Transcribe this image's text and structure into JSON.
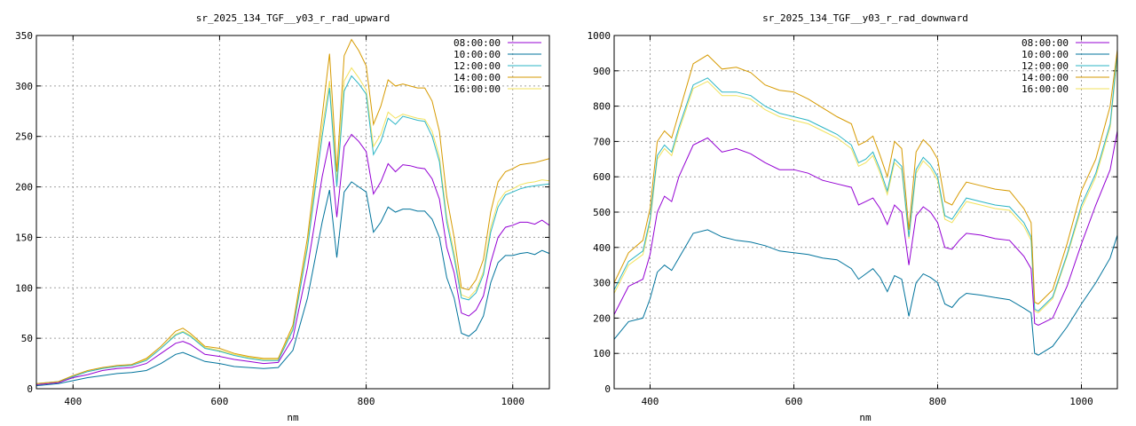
{
  "chart_data": [
    {
      "type": "line",
      "title": "sr_2025_134_TGF__y03_r_rad_upward",
      "xlabel": "nm",
      "ylabel": "",
      "xlim": [
        350,
        1050
      ],
      "ylim": [
        0,
        350
      ],
      "xticks": [
        400,
        600,
        800,
        1000
      ],
      "yticks": [
        0,
        50,
        100,
        150,
        200,
        250,
        300,
        350
      ],
      "grid": true,
      "legend": "top-right",
      "colors": [
        "#9400d3",
        "#00739c",
        "#2bb5c5",
        "#d69a00",
        "#f2e25c"
      ],
      "x": [
        350,
        380,
        400,
        420,
        440,
        460,
        480,
        500,
        520,
        540,
        550,
        560,
        580,
        600,
        620,
        640,
        660,
        680,
        700,
        720,
        740,
        750,
        760,
        770,
        780,
        790,
        800,
        810,
        820,
        830,
        840,
        850,
        860,
        870,
        880,
        890,
        900,
        910,
        920,
        930,
        940,
        950,
        960,
        970,
        980,
        990,
        1000,
        1010,
        1020,
        1030,
        1040,
        1050
      ],
      "series": [
        {
          "name": "08:00:00",
          "values": [
            4,
            6,
            11,
            14,
            18,
            20,
            21,
            25,
            35,
            45,
            47,
            44,
            34,
            32,
            29,
            27,
            25,
            26,
            50,
            120,
            210,
            245,
            170,
            240,
            252,
            245,
            235,
            193,
            205,
            223,
            215,
            222,
            221,
            219,
            218,
            208,
            188,
            140,
            115,
            75,
            72,
            78,
            92,
            125,
            150,
            160,
            162,
            165,
            165,
            163,
            167,
            162
          ]
        },
        {
          "name": "10:00:00",
          "values": [
            3,
            5,
            8,
            11,
            13,
            15,
            16,
            18,
            25,
            34,
            36,
            33,
            27,
            25,
            22,
            21,
            20,
            21,
            38,
            90,
            165,
            197,
            130,
            195,
            205,
            200,
            195,
            155,
            165,
            180,
            175,
            178,
            178,
            176,
            176,
            168,
            150,
            110,
            90,
            55,
            52,
            58,
            72,
            105,
            125,
            132,
            132,
            134,
            135,
            133,
            137,
            134
          ]
        },
        {
          "name": "12:00:00",
          "values": [
            5,
            7,
            12,
            17,
            20,
            22,
            23,
            28,
            40,
            53,
            56,
            52,
            40,
            37,
            33,
            30,
            28,
            28,
            58,
            140,
            250,
            298,
            200,
            295,
            310,
            302,
            292,
            232,
            245,
            268,
            262,
            270,
            268,
            266,
            265,
            250,
            225,
            165,
            130,
            90,
            88,
            95,
            113,
            155,
            180,
            192,
            195,
            198,
            200,
            201,
            202,
            203
          ]
        },
        {
          "name": "14:00:00",
          "values": [
            5,
            7,
            13,
            18,
            21,
            23,
            24,
            30,
            42,
            57,
            60,
            55,
            42,
            40,
            35,
            32,
            30,
            30,
            63,
            150,
            270,
            332,
            215,
            330,
            346,
            335,
            320,
            262,
            280,
            306,
            300,
            302,
            300,
            298,
            298,
            285,
            255,
            190,
            150,
            100,
            98,
            108,
            128,
            175,
            205,
            215,
            218,
            222,
            223,
            224,
            226,
            228
          ]
        },
        {
          "name": "16:00:00",
          "values": [
            4,
            6,
            12,
            17,
            20,
            22,
            23,
            29,
            40,
            54,
            57,
            53,
            41,
            38,
            34,
            31,
            29,
            29,
            60,
            143,
            258,
            305,
            205,
            305,
            318,
            308,
            296,
            240,
            252,
            274,
            268,
            272,
            270,
            268,
            267,
            255,
            230,
            170,
            135,
            93,
            90,
            98,
            116,
            160,
            185,
            195,
            198,
            202,
            204,
            205,
            207,
            206
          ]
        }
      ]
    },
    {
      "type": "line",
      "title": "sr_2025_134_TGF__y03_r_rad_downward",
      "xlabel": "nm",
      "ylabel": "",
      "xlim": [
        350,
        1050
      ],
      "ylim": [
        0,
        1000
      ],
      "xticks": [
        400,
        600,
        800,
        1000
      ],
      "yticks": [
        0,
        100,
        200,
        300,
        400,
        500,
        600,
        700,
        800,
        900,
        1000
      ],
      "grid": true,
      "legend": "top-right",
      "colors": [
        "#9400d3",
        "#00739c",
        "#2bb5c5",
        "#d69a00",
        "#f2e25c"
      ],
      "x": [
        350,
        370,
        390,
        400,
        410,
        420,
        430,
        440,
        460,
        480,
        500,
        520,
        540,
        560,
        580,
        600,
        620,
        640,
        660,
        680,
        690,
        700,
        710,
        720,
        730,
        740,
        750,
        760,
        770,
        780,
        790,
        800,
        810,
        820,
        830,
        840,
        860,
        880,
        900,
        920,
        930,
        935,
        940,
        960,
        980,
        1000,
        1020,
        1040,
        1050
      ],
      "series": [
        {
          "name": "08:00:00",
          "values": [
            210,
            290,
            310,
            380,
            500,
            545,
            530,
            600,
            690,
            710,
            670,
            680,
            665,
            640,
            620,
            620,
            610,
            590,
            580,
            570,
            520,
            530,
            540,
            510,
            465,
            520,
            500,
            350,
            490,
            515,
            500,
            470,
            400,
            395,
            420,
            440,
            435,
            425,
            420,
            375,
            340,
            185,
            180,
            200,
            290,
            410,
            520,
            620,
            730
          ]
        },
        {
          "name": "10:00:00",
          "values": [
            140,
            190,
            200,
            255,
            330,
            350,
            335,
            370,
            440,
            450,
            430,
            420,
            415,
            405,
            390,
            385,
            380,
            370,
            365,
            340,
            310,
            325,
            340,
            315,
            275,
            320,
            310,
            205,
            300,
            325,
            315,
            300,
            240,
            230,
            255,
            270,
            265,
            258,
            252,
            228,
            215,
            100,
            95,
            120,
            175,
            240,
            300,
            370,
            435
          ]
        },
        {
          "name": "12:00:00",
          "values": [
            280,
            360,
            390,
            480,
            660,
            690,
            670,
            740,
            860,
            880,
            840,
            840,
            830,
            800,
            780,
            770,
            760,
            740,
            720,
            690,
            640,
            650,
            670,
            620,
            560,
            650,
            630,
            430,
            620,
            655,
            635,
            600,
            490,
            480,
            510,
            540,
            530,
            520,
            515,
            470,
            430,
            225,
            220,
            260,
            380,
            520,
            610,
            750,
            950
          ]
        },
        {
          "name": "14:00:00",
          "values": [
            300,
            385,
            420,
            510,
            700,
            730,
            710,
            780,
            920,
            945,
            905,
            910,
            895,
            860,
            845,
            840,
            820,
            795,
            770,
            750,
            690,
            700,
            715,
            660,
            600,
            700,
            680,
            450,
            670,
            705,
            685,
            650,
            530,
            520,
            555,
            585,
            575,
            565,
            560,
            510,
            470,
            245,
            240,
            280,
            410,
            560,
            650,
            800,
            960
          ]
        },
        {
          "name": "16:00:00",
          "values": [
            270,
            350,
            380,
            470,
            650,
            680,
            660,
            730,
            850,
            870,
            830,
            830,
            820,
            790,
            770,
            760,
            750,
            730,
            710,
            680,
            630,
            640,
            660,
            610,
            550,
            640,
            620,
            425,
            610,
            645,
            625,
            590,
            480,
            470,
            500,
            530,
            520,
            510,
            505,
            460,
            420,
            220,
            215,
            255,
            375,
            510,
            600,
            740,
            940
          ]
        }
      ]
    }
  ]
}
